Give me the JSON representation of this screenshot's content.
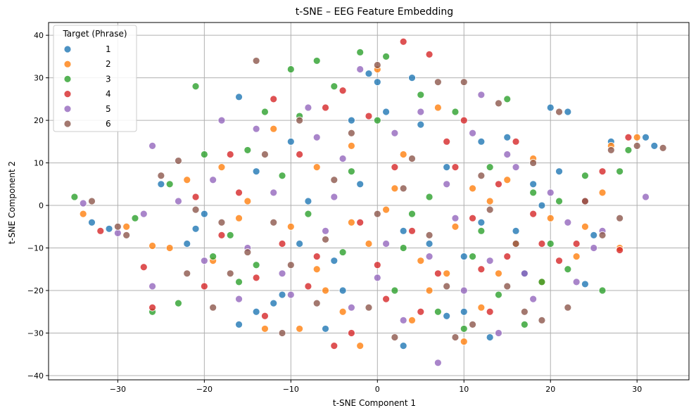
{
  "chart_data": {
    "type": "scatter",
    "title": "t-SNE – EEG Feature Embedding",
    "xlabel": "t-SNE Component 1",
    "ylabel": "t-SNE Component 2",
    "xlim": [
      -38,
      36
    ],
    "ylim": [
      -41,
      43
    ],
    "xticks": [
      -30,
      -20,
      -10,
      0,
      10,
      20,
      30
    ],
    "yticks": [
      -40,
      -30,
      -20,
      -10,
      0,
      10,
      20,
      30,
      40
    ],
    "grid": true,
    "legend": {
      "title": "Target (Phrase)",
      "placement": "top-left"
    },
    "series": [
      {
        "name": "1",
        "color": "#1f77b4",
        "points": [
          [
            -33,
            -4
          ],
          [
            -31,
            -5.5
          ],
          [
            -25,
            5
          ],
          [
            -22,
            -9
          ],
          [
            -21,
            -5.5
          ],
          [
            -16,
            25.5
          ],
          [
            -16,
            -28
          ],
          [
            -14,
            -25
          ],
          [
            -12,
            -23
          ],
          [
            -10,
            15
          ],
          [
            -9,
            -9
          ],
          [
            -8,
            1
          ],
          [
            -5,
            -13
          ],
          [
            -3,
            20
          ],
          [
            -2,
            5
          ],
          [
            -1,
            31
          ],
          [
            0,
            29
          ],
          [
            1,
            22
          ],
          [
            3,
            -33
          ],
          [
            4,
            30
          ],
          [
            6,
            -9
          ],
          [
            8,
            -26
          ],
          [
            10,
            -25
          ],
          [
            12,
            15
          ],
          [
            13,
            -31
          ],
          [
            15,
            16
          ],
          [
            17,
            -16
          ],
          [
            19,
            0
          ],
          [
            20,
            23
          ],
          [
            21,
            8
          ],
          [
            22,
            22
          ],
          [
            24,
            -18.5
          ],
          [
            25,
            -7
          ],
          [
            27,
            15
          ],
          [
            31,
            16
          ],
          [
            32,
            14
          ],
          [
            -6,
            -29
          ],
          [
            5,
            19
          ],
          [
            -20,
            -2
          ],
          [
            12,
            -4
          ],
          [
            -14,
            8
          ],
          [
            3,
            -6
          ],
          [
            8,
            9
          ],
          [
            -4,
            -20
          ],
          [
            18,
            5
          ],
          [
            10,
            -12
          ],
          [
            -11,
            -21
          ],
          [
            16,
            -6
          ]
        ]
      },
      {
        "name": "2",
        "color": "#ff7f0e",
        "points": [
          [
            -34,
            -2
          ],
          [
            -29,
            -5
          ],
          [
            -24,
            -10
          ],
          [
            -19,
            -13
          ],
          [
            -16,
            -3
          ],
          [
            -15,
            1
          ],
          [
            -13,
            -29
          ],
          [
            -12,
            18
          ],
          [
            -9,
            -29
          ],
          [
            -7,
            9
          ],
          [
            -6,
            -20
          ],
          [
            -4,
            -25
          ],
          [
            -3,
            14
          ],
          [
            -2,
            -33
          ],
          [
            0,
            32
          ],
          [
            1,
            -1
          ],
          [
            2,
            4
          ],
          [
            4,
            -27
          ],
          [
            5,
            -13
          ],
          [
            7,
            23
          ],
          [
            9,
            -5
          ],
          [
            10,
            -32
          ],
          [
            12,
            -24
          ],
          [
            13,
            1
          ],
          [
            16,
            -9
          ],
          [
            18,
            11
          ],
          [
            20,
            -3
          ],
          [
            23,
            -12
          ],
          [
            26,
            3
          ],
          [
            27,
            14
          ],
          [
            28,
            -10
          ],
          [
            30,
            16
          ],
          [
            -26,
            -9.5
          ],
          [
            -10,
            -5
          ],
          [
            6,
            -20
          ],
          [
            14,
            -16
          ],
          [
            -18,
            9
          ],
          [
            -1,
            -9
          ],
          [
            11,
            4
          ],
          [
            19,
            -18
          ],
          [
            -7,
            -15
          ],
          [
            3,
            12
          ],
          [
            -22,
            6
          ],
          [
            8,
            -16
          ],
          [
            15,
            6
          ],
          [
            -3,
            -4
          ],
          [
            24,
            -5
          ]
        ]
      },
      {
        "name": "3",
        "color": "#2ca02c",
        "points": [
          [
            -35,
            2
          ],
          [
            -28,
            -3
          ],
          [
            -26,
            -25
          ],
          [
            -24,
            5
          ],
          [
            -23,
            -23
          ],
          [
            -21,
            28
          ],
          [
            -19,
            -12
          ],
          [
            -17,
            -7
          ],
          [
            -15,
            13
          ],
          [
            -13,
            22
          ],
          [
            -11,
            7
          ],
          [
            -10,
            32
          ],
          [
            -8,
            -2
          ],
          [
            -7,
            34
          ],
          [
            -5,
            28
          ],
          [
            -4,
            -11
          ],
          [
            -2,
            36
          ],
          [
            0,
            20
          ],
          [
            1,
            35
          ],
          [
            3,
            -10
          ],
          [
            5,
            26
          ],
          [
            7,
            -25
          ],
          [
            9,
            22
          ],
          [
            10,
            -29
          ],
          [
            12,
            -6
          ],
          [
            14,
            -21
          ],
          [
            15,
            25
          ],
          [
            17,
            -28
          ],
          [
            19,
            -18
          ],
          [
            21,
            1
          ],
          [
            22,
            -15
          ],
          [
            24,
            7
          ],
          [
            26,
            -20
          ],
          [
            28,
            8
          ],
          [
            29,
            13
          ],
          [
            -20,
            12
          ],
          [
            -3,
            8
          ],
          [
            6,
            2
          ],
          [
            13,
            9
          ],
          [
            -14,
            -14
          ],
          [
            2,
            -20
          ],
          [
            18,
            3
          ],
          [
            -9,
            21
          ],
          [
            11,
            -12
          ],
          [
            -16,
            -18
          ],
          [
            4,
            -2
          ],
          [
            20,
            -9
          ]
        ]
      },
      {
        "name": "4",
        "color": "#d62728",
        "points": [
          [
            -32,
            -6
          ],
          [
            -27,
            -14.5
          ],
          [
            -26,
            -24
          ],
          [
            -20,
            -19
          ],
          [
            -18,
            -7
          ],
          [
            -16,
            3
          ],
          [
            -14,
            -17
          ],
          [
            -12,
            25
          ],
          [
            -11,
            -9
          ],
          [
            -9,
            12
          ],
          [
            -7,
            -12
          ],
          [
            -6,
            23
          ],
          [
            -4,
            27
          ],
          [
            -2,
            -4
          ],
          [
            -1,
            21
          ],
          [
            1,
            -22
          ],
          [
            3,
            38.5
          ],
          [
            4,
            -6
          ],
          [
            6,
            35.5
          ],
          [
            7,
            -16
          ],
          [
            9,
            9
          ],
          [
            11,
            -3
          ],
          [
            12,
            -15
          ],
          [
            14,
            5
          ],
          [
            16,
            15
          ],
          [
            18,
            -2
          ],
          [
            19,
            -9
          ],
          [
            21,
            -13
          ],
          [
            23,
            -9
          ],
          [
            26,
            8
          ],
          [
            28,
            -10.5
          ],
          [
            29,
            16
          ],
          [
            -3,
            -30
          ],
          [
            -5,
            -33
          ],
          [
            8,
            15
          ],
          [
            -13,
            -26
          ],
          [
            2,
            9
          ],
          [
            15,
            -12
          ],
          [
            -21,
            2
          ],
          [
            10,
            20
          ],
          [
            -8,
            -19
          ],
          [
            5,
            -25
          ],
          [
            24,
            1
          ],
          [
            -17,
            12
          ],
          [
            0,
            -14
          ],
          [
            13,
            -25
          ]
        ]
      },
      {
        "name": "5",
        "color": "#9467bd",
        "points": [
          [
            -34,
            0.5
          ],
          [
            -30,
            -6.5
          ],
          [
            -27,
            -2
          ],
          [
            -26,
            14
          ],
          [
            -26,
            -19
          ],
          [
            -23,
            1
          ],
          [
            -20,
            -13
          ],
          [
            -18,
            20
          ],
          [
            -16,
            -22
          ],
          [
            -14,
            18
          ],
          [
            -12,
            3
          ],
          [
            -10,
            -21
          ],
          [
            -8,
            23
          ],
          [
            -6,
            -6
          ],
          [
            -4,
            11
          ],
          [
            -2,
            32
          ],
          [
            0,
            -17
          ],
          [
            2,
            17
          ],
          [
            3,
            -27
          ],
          [
            5,
            22
          ],
          [
            7,
            -37
          ],
          [
            8,
            5
          ],
          [
            10,
            -20
          ],
          [
            11,
            17
          ],
          [
            13,
            -13
          ],
          [
            14,
            -30
          ],
          [
            16,
            9
          ],
          [
            18,
            -22
          ],
          [
            20,
            3
          ],
          [
            22,
            -4
          ],
          [
            23,
            -18
          ],
          [
            25,
            -10
          ],
          [
            26,
            -6
          ],
          [
            31,
            2
          ],
          [
            -15,
            -10
          ],
          [
            -5,
            2
          ],
          [
            6,
            -12
          ],
          [
            12,
            26
          ],
          [
            -19,
            6
          ],
          [
            1,
            -9
          ],
          [
            17,
            -16
          ],
          [
            -11,
            -16
          ],
          [
            9,
            -3
          ],
          [
            -3,
            -24
          ],
          [
            15,
            12
          ],
          [
            -7,
            16
          ]
        ]
      },
      {
        "name": "6",
        "color": "#8c564b",
        "points": [
          [
            -33,
            1
          ],
          [
            -30,
            -5
          ],
          [
            -29,
            -7
          ],
          [
            -25,
            7
          ],
          [
            -23,
            10.5
          ],
          [
            -22,
            -16
          ],
          [
            -21,
            -1
          ],
          [
            -19,
            -24
          ],
          [
            -17,
            -16
          ],
          [
            -15,
            -11
          ],
          [
            -14,
            34
          ],
          [
            -12,
            -4
          ],
          [
            -11,
            -30
          ],
          [
            -9,
            20
          ],
          [
            -7,
            -23
          ],
          [
            -5,
            6
          ],
          [
            -3,
            17
          ],
          [
            -1,
            -24
          ],
          [
            0,
            33
          ],
          [
            2,
            -31
          ],
          [
            4,
            11
          ],
          [
            6,
            -7
          ],
          [
            7,
            29
          ],
          [
            9,
            -31
          ],
          [
            10,
            29
          ],
          [
            11,
            -28
          ],
          [
            13,
            -1
          ],
          [
            15,
            -19
          ],
          [
            16,
            -9
          ],
          [
            17,
            -25
          ],
          [
            18,
            10
          ],
          [
            19,
            -27
          ],
          [
            21,
            22
          ],
          [
            22,
            -24
          ],
          [
            24,
            1
          ],
          [
            26,
            -7
          ],
          [
            27,
            13
          ],
          [
            28,
            -3
          ],
          [
            30,
            14
          ],
          [
            33,
            13.5
          ],
          [
            -10,
            -14
          ],
          [
            3,
            4
          ],
          [
            8,
            -19
          ],
          [
            -18,
            -4
          ],
          [
            14,
            24
          ],
          [
            -6,
            -8
          ],
          [
            12,
            7
          ],
          [
            0,
            -2
          ],
          [
            -13,
            12
          ]
        ]
      }
    ]
  }
}
